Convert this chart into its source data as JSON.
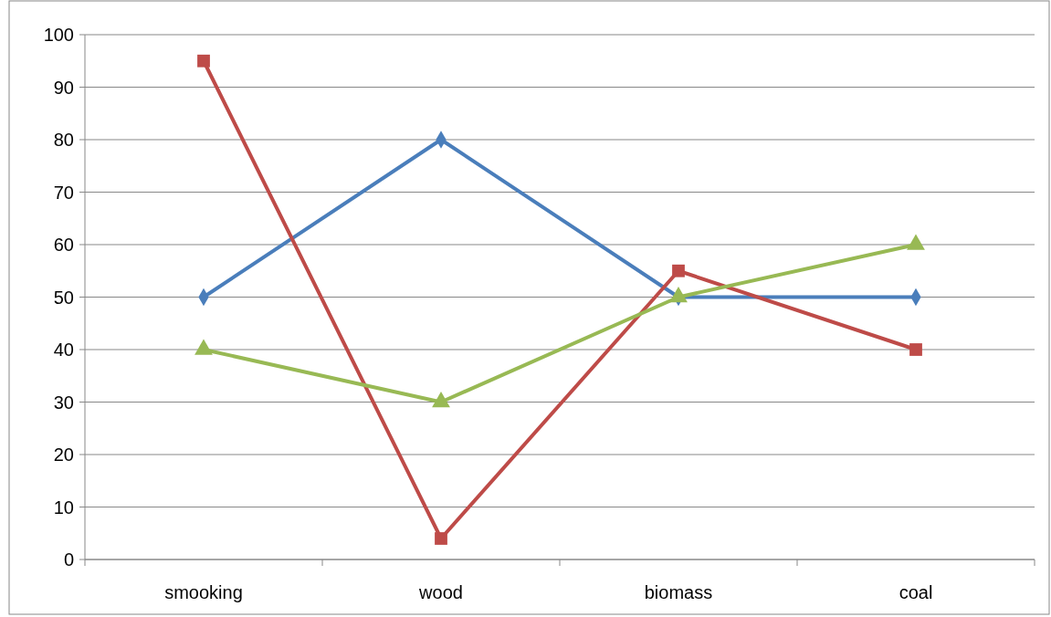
{
  "chart_data": {
    "type": "line",
    "categories": [
      "smooking",
      "wood",
      "biomass",
      "coal"
    ],
    "series": [
      {
        "color": "#4a7ebb",
        "marker": "diamond",
        "values": [
          50,
          80,
          50,
          50
        ]
      },
      {
        "color": "#be4b48",
        "marker": "square",
        "values": [
          95,
          4,
          55,
          40
        ]
      },
      {
        "color": "#98b954",
        "marker": "triangle",
        "values": [
          40,
          30,
          50,
          60
        ]
      }
    ],
    "ylim": [
      0,
      100
    ],
    "yticks": [
      0,
      10,
      20,
      30,
      40,
      50,
      60,
      70,
      80,
      90,
      100
    ],
    "grid": "y",
    "line_style": "solid"
  }
}
